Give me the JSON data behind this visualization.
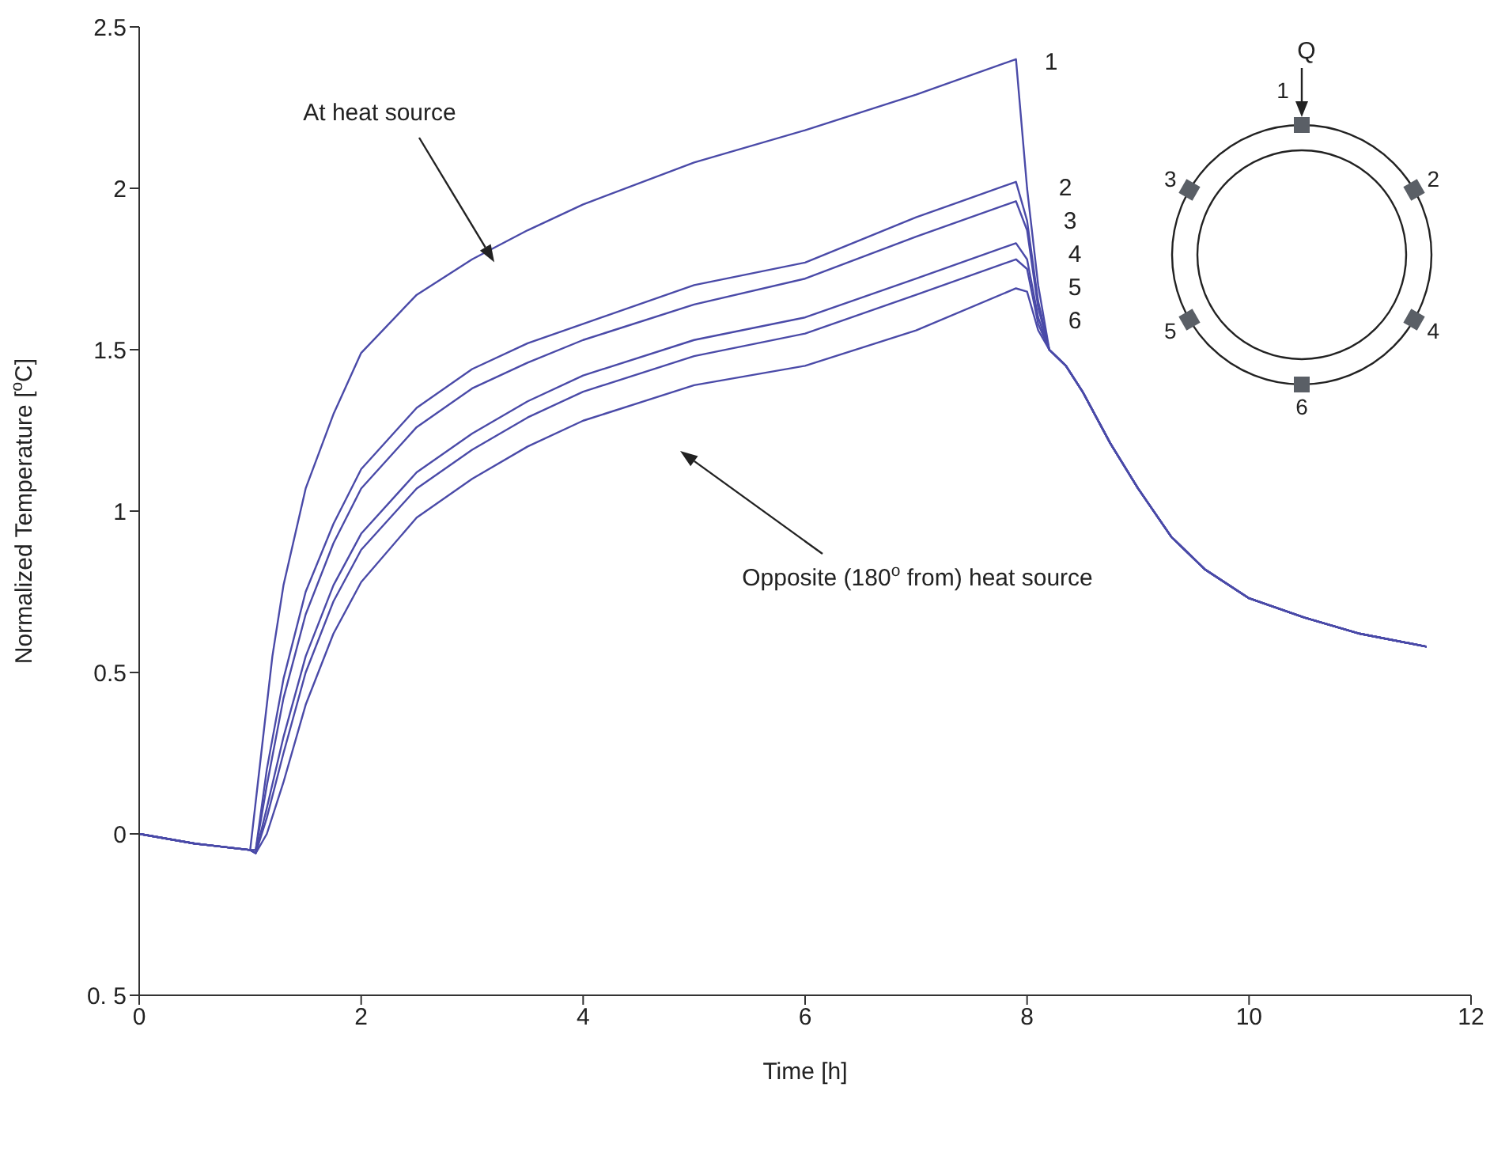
{
  "chart_data": {
    "type": "line",
    "xlabel": "Time [h]",
    "ylabel": "Normalized Temperature  [$^{o}$C]",
    "xlim": [
      0,
      12
    ],
    "xticks": [
      0,
      2,
      4,
      6,
      8,
      10,
      12
    ],
    "ylim": [
      -0.5,
      2.5
    ],
    "yticks": [
      {
        "value": -0.5,
        "label": "0. 5"
      },
      0,
      0.5,
      1,
      1.5,
      2,
      2.5
    ],
    "marker": "none",
    "line_style": "solid",
    "annotations": [
      {
        "text": "At heat source",
        "x": 3.2,
        "y": 1.82
      },
      "Opposite (180$^{o}$ from) heat source",
      "Q"
    ],
    "series": [
      {
        "name": "1",
        "color": "#4a4aa8",
        "x": [
          0,
          0.5,
          1.0,
          1.1,
          1.2,
          1.3,
          1.5,
          1.75,
          2,
          2.5,
          3,
          3.5,
          4,
          5,
          6,
          7,
          7.9,
          8.0,
          8.1,
          8.2,
          8.35,
          8.5,
          8.75,
          9,
          9.3,
          9.6,
          10,
          10.5,
          11,
          11.6
        ],
        "values": [
          0,
          -0.03,
          -0.05,
          0.25,
          0.55,
          0.77,
          1.07,
          1.3,
          1.49,
          1.67,
          1.78,
          1.87,
          1.95,
          2.08,
          2.18,
          2.29,
          2.4,
          2.0,
          1.7,
          1.5,
          1.45,
          1.37,
          1.21,
          1.07,
          0.92,
          0.82,
          0.73,
          0.67,
          0.62,
          0.58
        ]
      },
      {
        "name": "2",
        "color": "#4a4aa8",
        "x": [
          0,
          0.5,
          1.0,
          1.05,
          1.15,
          1.3,
          1.5,
          1.75,
          2,
          2.5,
          3,
          3.5,
          4,
          5,
          6,
          7,
          7.9,
          8.0,
          8.1,
          8.2,
          8.35,
          8.5,
          8.75,
          9,
          9.3,
          9.6,
          10,
          10.5,
          11,
          11.6
        ],
        "values": [
          0,
          -0.03,
          -0.05,
          -0.05,
          0.2,
          0.48,
          0.75,
          0.96,
          1.13,
          1.32,
          1.44,
          1.52,
          1.58,
          1.7,
          1.77,
          1.91,
          2.02,
          1.9,
          1.65,
          1.5,
          1.45,
          1.37,
          1.21,
          1.07,
          0.92,
          0.82,
          0.73,
          0.67,
          0.62,
          0.58
        ]
      },
      {
        "name": "3",
        "color": "#4a4aa8",
        "x": [
          0,
          0.5,
          1.0,
          1.05,
          1.15,
          1.3,
          1.5,
          1.75,
          2,
          2.5,
          3,
          3.5,
          4,
          5,
          6,
          7,
          7.9,
          8.0,
          8.1,
          8.2,
          8.35,
          8.5,
          8.75,
          9,
          9.3,
          9.6,
          10,
          10.5,
          11,
          11.6
        ],
        "values": [
          0,
          -0.03,
          -0.05,
          -0.05,
          0.15,
          0.42,
          0.68,
          0.9,
          1.07,
          1.26,
          1.38,
          1.46,
          1.53,
          1.64,
          1.72,
          1.85,
          1.96,
          1.87,
          1.63,
          1.5,
          1.45,
          1.37,
          1.21,
          1.07,
          0.92,
          0.82,
          0.73,
          0.67,
          0.62,
          0.58
        ]
      },
      {
        "name": "4",
        "color": "#4a4aa8",
        "x": [
          0,
          0.5,
          1.0,
          1.05,
          1.15,
          1.3,
          1.5,
          1.75,
          2,
          2.5,
          3,
          3.5,
          4,
          5,
          6,
          7,
          7.9,
          8.0,
          8.1,
          8.2,
          8.35,
          8.5,
          8.75,
          9,
          9.3,
          9.6,
          10,
          10.5,
          11,
          11.6
        ],
        "values": [
          0,
          -0.03,
          -0.05,
          -0.06,
          0.08,
          0.3,
          0.55,
          0.77,
          0.93,
          1.12,
          1.24,
          1.34,
          1.42,
          1.53,
          1.6,
          1.72,
          1.83,
          1.78,
          1.6,
          1.5,
          1.45,
          1.37,
          1.21,
          1.07,
          0.92,
          0.82,
          0.73,
          0.67,
          0.62,
          0.58
        ]
      },
      {
        "name": "5",
        "color": "#4a4aa8",
        "x": [
          0,
          0.5,
          1.0,
          1.05,
          1.15,
          1.3,
          1.5,
          1.75,
          2,
          2.5,
          3,
          3.5,
          4,
          5,
          6,
          7,
          7.9,
          8.0,
          8.1,
          8.2,
          8.35,
          8.5,
          8.75,
          9,
          9.3,
          9.6,
          10,
          10.5,
          11,
          11.6
        ],
        "values": [
          0,
          -0.03,
          -0.05,
          -0.06,
          0.05,
          0.25,
          0.5,
          0.72,
          0.88,
          1.07,
          1.19,
          1.29,
          1.37,
          1.48,
          1.55,
          1.67,
          1.78,
          1.75,
          1.58,
          1.5,
          1.45,
          1.37,
          1.21,
          1.07,
          0.92,
          0.82,
          0.73,
          0.67,
          0.62,
          0.58
        ]
      },
      {
        "name": "6",
        "color": "#4a4aa8",
        "x": [
          0,
          0.5,
          1.0,
          1.05,
          1.15,
          1.3,
          1.5,
          1.75,
          2,
          2.5,
          3,
          3.5,
          4,
          5,
          6,
          7,
          7.9,
          8.0,
          8.1,
          8.2,
          8.35,
          8.5,
          8.75,
          9,
          9.3,
          9.6,
          10,
          10.5,
          11,
          11.6
        ],
        "values": [
          0,
          -0.03,
          -0.05,
          -0.06,
          0.0,
          0.16,
          0.4,
          0.62,
          0.78,
          0.98,
          1.1,
          1.2,
          1.28,
          1.39,
          1.45,
          1.56,
          1.69,
          1.68,
          1.56,
          1.5,
          1.45,
          1.37,
          1.21,
          1.07,
          0.92,
          0.82,
          0.73,
          0.67,
          0.62,
          0.58
        ]
      }
    ]
  }
}
